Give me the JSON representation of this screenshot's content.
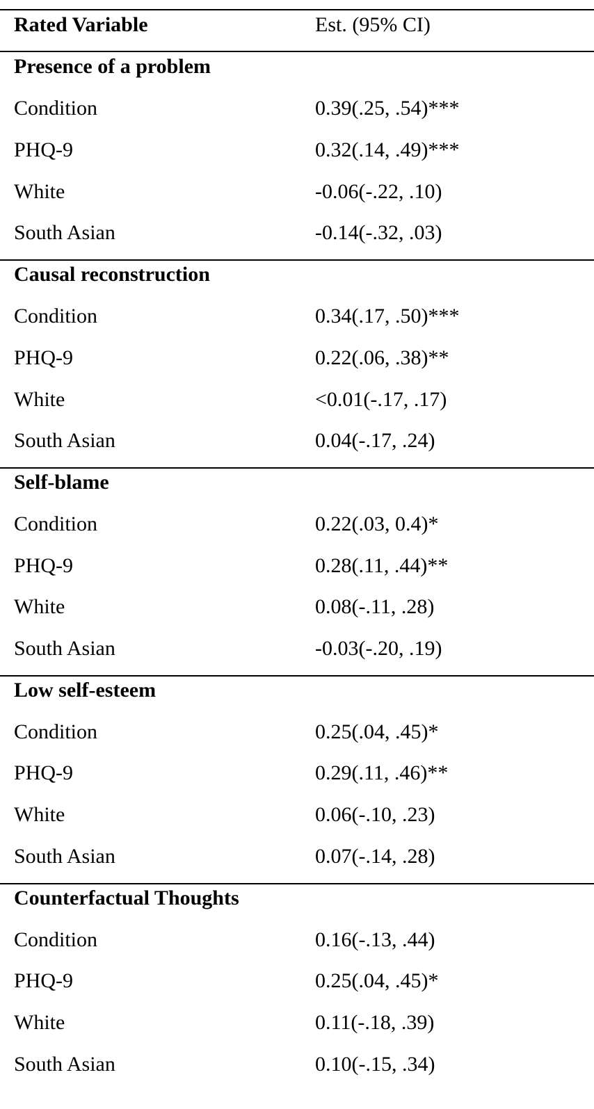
{
  "header": {
    "col_variable": "Rated Variable",
    "col_estimate": "Est. (95% CI)"
  },
  "sections": [
    {
      "title": "Presence of a problem",
      "rows": [
        {
          "label": "Condition",
          "estimate": "0.39(.25, .54)***"
        },
        {
          "label": "PHQ-9",
          "estimate": "0.32(.14, .49)***"
        },
        {
          "label": "White",
          "estimate": "-0.06(-.22, .10)"
        },
        {
          "label": "South Asian",
          "estimate": "-0.14(-.32, .03)"
        }
      ]
    },
    {
      "title": "Causal reconstruction",
      "rows": [
        {
          "label": "Condition",
          "estimate": "0.34(.17, .50)***"
        },
        {
          "label": "PHQ-9",
          "estimate": "0.22(.06, .38)**"
        },
        {
          "label": "White",
          "estimate": "<0.01(-.17, .17)"
        },
        {
          "label": "South Asian",
          "estimate": "0.04(-.17, .24)"
        }
      ]
    },
    {
      "title": "Self-blame",
      "rows": [
        {
          "label": "Condition",
          "estimate": "0.22(.03, 0.4)*"
        },
        {
          "label": "PHQ-9",
          "estimate": "0.28(.11, .44)**"
        },
        {
          "label": "White",
          "estimate": "0.08(-.11, .28)"
        },
        {
          "label": "South Asian",
          "estimate": "-0.03(-.20, .19)"
        }
      ]
    },
    {
      "title": "Low self-esteem",
      "rows": [
        {
          "label": "Condition",
          "estimate": "0.25(.04, .45)*"
        },
        {
          "label": "PHQ-9",
          "estimate": "0.29(.11, .46)**"
        },
        {
          "label": "White",
          "estimate": "0.06(-.10, .23)"
        },
        {
          "label": "South Asian",
          "estimate": "0.07(-.14, .28)"
        }
      ]
    },
    {
      "title": "Counterfactual Thoughts",
      "rows": [
        {
          "label": "Condition",
          "estimate": "0.16(-.13, .44)"
        },
        {
          "label": "PHQ-9",
          "estimate": "0.25(.04, .45)*"
        },
        {
          "label": "White",
          "estimate": "0.11(-.18, .39)"
        },
        {
          "label": "South Asian",
          "estimate": "0.10(-.15, .34)"
        }
      ]
    }
  ]
}
